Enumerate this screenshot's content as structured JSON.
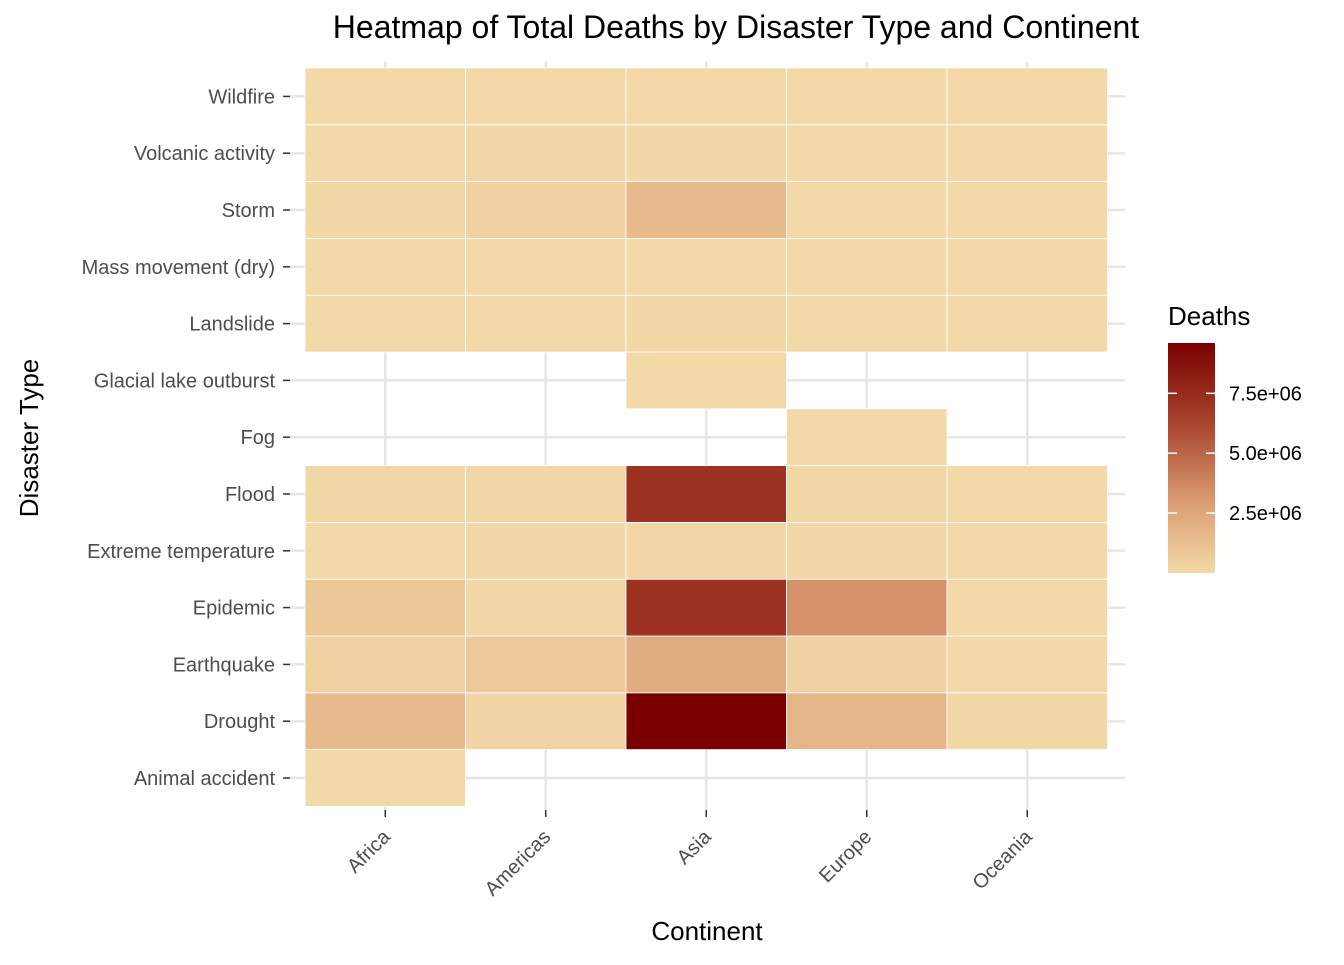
{
  "chart_data": {
    "type": "heatmap",
    "title": "Heatmap of Total Deaths by Disaster Type and Continent",
    "xlabel": "Continent",
    "ylabel": "Disaster Type",
    "x_categories": [
      "Africa",
      "Americas",
      "Asia",
      "Europe",
      "Oceania"
    ],
    "y_categories": [
      "Animal accident",
      "Drought",
      "Earthquake",
      "Epidemic",
      "Extreme temperature",
      "Flood",
      "Fog",
      "Glacial lake outburst",
      "Landslide",
      "Mass movement (dry)",
      "Storm",
      "Volcanic activity",
      "Wildfire"
    ],
    "values": [
      [
        50,
        null,
        null,
        null,
        null
      ],
      [
        1500000,
        200000,
        9600000,
        1700000,
        50000
      ],
      [
        400000,
        800000,
        2200000,
        300000,
        10000
      ],
      [
        900000,
        150000,
        7100000,
        3300000,
        10000
      ],
      [
        10000,
        100000,
        150000,
        150000,
        1000
      ],
      [
        100000,
        100000,
        7100000,
        100000,
        1000
      ],
      [
        null,
        null,
        null,
        4000,
        null
      ],
      [
        null,
        null,
        6000,
        null,
        null
      ],
      [
        10000,
        20000,
        50000,
        10000,
        1000
      ],
      [
        1000,
        2000,
        10000,
        3000,
        100
      ],
      [
        50000,
        300000,
        1500000,
        20000,
        1000
      ],
      [
        10000,
        30000,
        50000,
        10000,
        5000
      ],
      [
        1000,
        5000,
        1000,
        3000,
        1000
      ]
    ],
    "legend": {
      "title": "Deaths",
      "breaks": [
        2500000,
        5000000,
        7500000
      ],
      "labels": [
        "2.5e+06",
        "5.0e+06",
        "7.5e+06"
      ],
      "limits": [
        50,
        9600000
      ],
      "low_color": "#F3D9A8",
      "high_color": "#7A0000",
      "placement": "right"
    },
    "grid": true
  }
}
